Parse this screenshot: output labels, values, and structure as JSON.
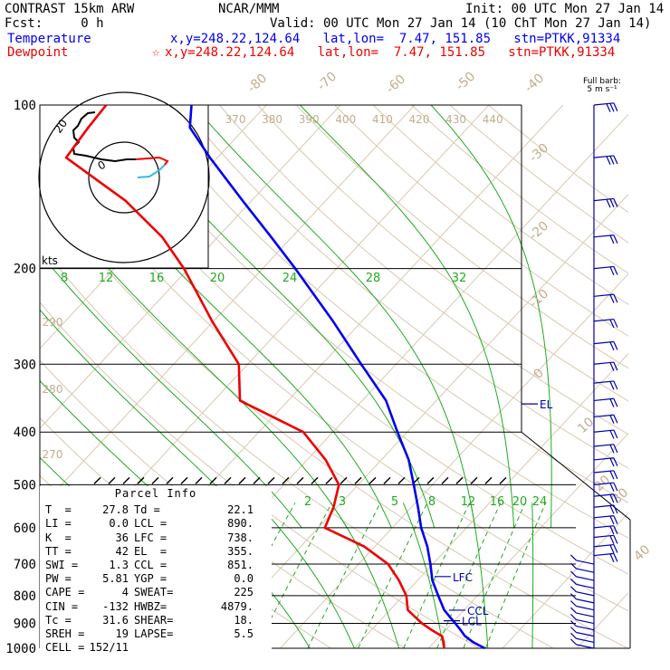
{
  "header": {
    "model": "CONTRAST 15km ARW",
    "source": "NCAR/MMM",
    "init": "Init: 00 UTC Mon 27 Jan 14",
    "fcst": "Fcst:     0 h",
    "valid": "Valid: 00 UTC Mon 27 Jan 14 (10 ChT Mon 27 Jan 14)",
    "temperature_label": "Temperature",
    "temperature_info": "x,y=248.22,124.64   lat,lon=  7.47, 151.85   stn=PTKK,91334",
    "dewpoint_label": "Dewpoint",
    "dewpoint_info": "x,y=248.22,124.64   lat,lon=  7.47, 151.85   stn=PTKK,91334",
    "dewpoint_marker": "☆"
  },
  "barb_caption": {
    "line1": "Full barb:",
    "line2": "5 m s⁻¹"
  },
  "parcel_info": {
    "title": "Parcel Info",
    "rows": [
      {
        "k1": "T  =",
        "v1": "27.8",
        "k2": "Td =",
        "v2": "22.1"
      },
      {
        "k1": "LI =",
        "v1": "0.0",
        "k2": "LCL =",
        "v2": "890."
      },
      {
        "k1": "K  =",
        "v1": "36",
        "k2": "LFC =",
        "v2": "738."
      },
      {
        "k1": "TT =",
        "v1": "42",
        "k2": "EL  =",
        "v2": "355."
      },
      {
        "k1": "SWI =",
        "v1": "1.3",
        "k2": "CCL =",
        "v2": "851."
      },
      {
        "k1": "PW =",
        "v1": "5.81",
        "k2": "YGP =",
        "v2": "0.0"
      },
      {
        "k1": "CAPE =",
        "v1": "4",
        "k2": "SWEAT=",
        "v2": "225"
      },
      {
        "k1": "CIN =",
        "v1": "-132",
        "k2": "HWBZ=",
        "v2": "4879."
      },
      {
        "k1": "Tc =",
        "v1": "31.6",
        "k2": "SHEAR=",
        "v2": "18."
      },
      {
        "k1": "SREH =",
        "v1": "19",
        "k2": "LAPSE=",
        "v2": "5.5"
      },
      {
        "k1": "CELL =",
        "v1": "152/11",
        "k2": "",
        "v2": ""
      }
    ]
  },
  "chart_data": {
    "type": "line",
    "pressure_levels": [
      1000,
      900,
      800,
      700,
      600,
      500,
      400,
      300,
      200,
      100
    ],
    "pressure_labels": [
      "1000",
      "900",
      "800",
      "700",
      "600",
      "500",
      "400",
      "300",
      "200",
      "100"
    ],
    "y_scale": "log-pressure",
    "ylim": [
      1000,
      100
    ],
    "isotherm_labels": [
      -80,
      -70,
      -60,
      -50,
      -40,
      -30,
      -20,
      -10,
      0,
      10,
      20,
      30,
      40
    ],
    "dry_adiabat_labels": [
      370,
      380,
      390,
      400,
      410,
      420,
      430,
      440
    ],
    "dry_adiabat_left_labels": [
      290,
      280,
      270
    ],
    "moist_adiabat_labels": [
      8,
      12,
      16,
      20,
      24,
      28,
      32
    ],
    "mixing_ratio_labels": [
      "2",
      "3",
      "5",
      "8",
      "12",
      "16",
      "20",
      "24"
    ],
    "series": [
      {
        "name": "Temperature",
        "color": "#0000ee",
        "p": [
          1000,
          975,
          950,
          925,
          900,
          875,
          850,
          800,
          750,
          700,
          650,
          600,
          550,
          500,
          450,
          400,
          350,
          300,
          250,
          200,
          175,
          150,
          125,
          110,
          100
        ],
        "t": [
          27.6,
          25.3,
          23.4,
          22.0,
          20.5,
          18.9,
          17.3,
          14.7,
          12.0,
          9.7,
          7.1,
          3.9,
          0.9,
          -2.5,
          -6.3,
          -11.3,
          -16.8,
          -24.7,
          -33.9,
          -45.6,
          -52.8,
          -61.2,
          -71.0,
          -77.5,
          -80.1
        ]
      },
      {
        "name": "Dewpoint",
        "color": "#ee0000",
        "p": [
          1000,
          975,
          950,
          925,
          900,
          875,
          850,
          800,
          750,
          700,
          650,
          600,
          550,
          500,
          450,
          400,
          350,
          300,
          250,
          200,
          175,
          150,
          125,
          110,
          100
        ],
        "t": [
          22.1,
          21.3,
          20.3,
          18.1,
          16.0,
          14.2,
          12.4,
          10.4,
          7.5,
          4.0,
          -1.4,
          -9.1,
          -10.5,
          -12.6,
          -17.5,
          -24.0,
          -36.5,
          -41.2,
          -50.2,
          -60.6,
          -67.5,
          -77.0,
          -90.4,
          -91.2,
          -91.6
        ]
      }
    ],
    "annotations": [
      {
        "text": "EL",
        "p": 355
      },
      {
        "text": "LFC",
        "p": 738
      },
      {
        "text": "CCL",
        "p": 851
      },
      {
        "text": "LCL",
        "p": 890
      }
    ],
    "hodograph": {
      "unit_label": "kts",
      "ring_labels": [
        "0",
        "20"
      ],
      "trace_colors": [
        "#ee0000",
        "#33bbdd",
        "#000000"
      ]
    },
    "wind_barbs": {
      "p": [
        1000,
        975,
        950,
        925,
        900,
        875,
        850,
        825,
        800,
        775,
        750,
        725,
        700,
        675,
        650,
        625,
        600,
        575,
        550,
        525,
        500,
        475,
        450,
        425,
        400,
        375,
        350,
        325,
        300,
        275,
        250,
        225,
        200,
        175,
        150,
        125,
        100
      ],
      "color_low": "#0000aa",
      "color_high": "#0000aa"
    }
  }
}
